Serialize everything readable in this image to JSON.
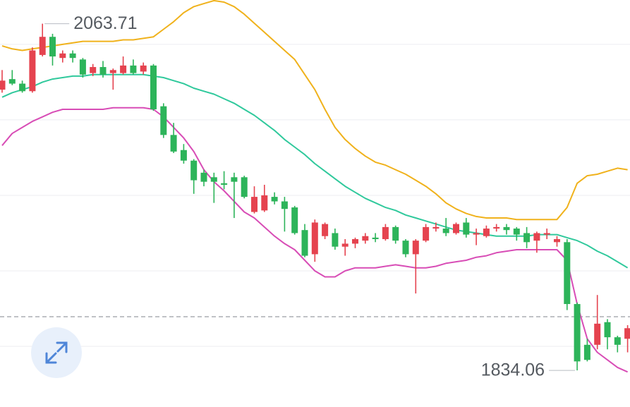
{
  "chart_data": {
    "type": "candlestick",
    "open": [
      2020,
      2027,
      2024,
      2019,
      2043,
      2055,
      2041,
      2044,
      2040,
      2031,
      2035,
      2031,
      2031,
      2036,
      2032,
      2036,
      2009,
      1990,
      1980,
      1973,
      1965,
      1962,
      1958,
      1962,
      1962,
      1939,
      1940,
      1949,
      1946,
      1942,
      1927,
      1911,
      1923,
      1925,
      1916,
      1918,
      1920,
      1922,
      1921,
      1929,
      1920,
      1911,
      1920,
      1928,
      1928,
      1925,
      1932,
      1924,
      1923,
      1928,
      1929,
      1928,
      1925,
      1920,
      1924,
      1919,
      1919,
      1878,
      1851,
      1851,
      1866,
      1856,
      1855
    ],
    "high": [
      2033,
      2033,
      2026,
      2048,
      2063.71,
      2057,
      2046,
      2046,
      2041,
      2037,
      2039,
      2034,
      2042,
      2040,
      2038,
      2037,
      2011,
      1998,
      1984,
      1974,
      1967,
      1965,
      1966,
      1965,
      1963,
      1956,
      1957,
      1952,
      1949,
      1943,
      1931,
      1934,
      1932,
      1928,
      1921,
      1922,
      1925,
      1925,
      1931,
      1930,
      1921,
      1921,
      1931,
      1932,
      1935,
      1932,
      1935,
      1928,
      1930,
      1931,
      1931,
      1929,
      1929,
      1926,
      1928,
      1923,
      1921,
      1879,
      1855,
      1884,
      1868,
      1857,
      1864
    ],
    "low": [
      2018,
      2023,
      2018,
      2018,
      2042,
      2036,
      2038,
      2038,
      2028,
      2029,
      2028,
      2020,
      2030,
      2030,
      2030,
      2006,
      1988,
      1978,
      1971,
      1951,
      1956,
      1945,
      1954,
      1935,
      1948,
      1938,
      1939,
      1944,
      1926,
      1924,
      1909,
      1906,
      1921,
      1914,
      1910,
      1915,
      1918,
      1919,
      1920,
      1918,
      1909,
      1885,
      1919,
      1926,
      1923,
      1924,
      1922,
      1917,
      1922,
      1926,
      1924,
      1920,
      1915,
      1912,
      1921,
      1916,
      1874,
      1834.06,
      1840,
      1848,
      1848,
      1846,
      1846
    ],
    "close": [
      2026,
      2024,
      2019,
      2046,
      2055,
      2042,
      2044,
      2041,
      2030,
      2035,
      2030,
      2033,
      2036,
      2031,
      2036,
      2007,
      1990,
      1979,
      1973,
      1960,
      1959,
      1959,
      1957,
      1959,
      1949,
      1949,
      1950,
      1946,
      1941,
      1925,
      1910,
      1932,
      1931,
      1916,
      1918,
      1921,
      1923,
      1921,
      1929,
      1920,
      1911,
      1920,
      1929,
      1929,
      1925,
      1931,
      1924,
      1925,
      1928,
      1929,
      1927,
      1924,
      1919,
      1925,
      1925,
      1921,
      1878,
      1840,
      1841,
      1865,
      1856,
      1851,
      1862
    ],
    "up_color": "#e5434f",
    "down_color": "#2db45a",
    "lines": [
      {
        "color": "#f0b21c",
        "values": [
          2049,
          2047,
          2046,
          2047,
          2048,
          2049,
          2050,
          2051,
          2052,
          2052,
          2052,
          2052,
          2053,
          2053,
          2054,
          2055,
          2060,
          2065,
          2071,
          2075,
          2077,
          2079,
          2078,
          2075,
          2070,
          2064,
          2058,
          2052,
          2046,
          2040,
          2030,
          2020,
          2007,
          1995,
          1987,
          1981,
          1976,
          1972,
          1970,
          1967,
          1964,
          1960,
          1956,
          1951,
          1945,
          1941,
          1938,
          1936,
          1935,
          1935,
          1935,
          1934,
          1934,
          1934,
          1934,
          1934,
          1942,
          1958,
          1963,
          1964,
          1966,
          1968,
          1967
        ]
      },
      {
        "color": "#30c99c",
        "values": [
          2015,
          2018,
          2020,
          2022,
          2025,
          2027,
          2028,
          2029,
          2029,
          2030,
          2030,
          2030,
          2030,
          2030,
          2030,
          2029,
          2028,
          2026,
          2024,
          2021,
          2019,
          2017,
          2014,
          2011,
          2007,
          2003,
          1998,
          1993,
          1987,
          1982,
          1977,
          1971,
          1966,
          1961,
          1956,
          1952,
          1948,
          1945,
          1942,
          1940,
          1937,
          1935,
          1933,
          1931,
          1929,
          1927,
          1926,
          1925,
          1924,
          1923,
          1923,
          1923,
          1923,
          1924,
          1924,
          1924,
          1922,
          1920,
          1917,
          1913,
          1910,
          1906,
          1902
        ]
      },
      {
        "color": "#d84db6",
        "values": [
          1983,
          1991,
          1995,
          1999,
          2002,
          2005,
          2007,
          2007,
          2007,
          2007,
          2007,
          2008,
          2008,
          2008,
          2008,
          2007,
          2002,
          1995,
          1988,
          1979,
          1967,
          1959,
          1953,
          1946,
          1939,
          1935,
          1929,
          1923,
          1918,
          1914,
          1907,
          1900,
          1896,
          1896,
          1900,
          1902,
          1902,
          1902,
          1903,
          1904,
          1903,
          1902,
          1902,
          1903,
          1905,
          1906,
          1907,
          1909,
          1910,
          1912,
          1913,
          1914,
          1914,
          1914,
          1914,
          1914,
          1907,
          1878,
          1855,
          1846,
          1841,
          1836,
          1833
        ]
      }
    ],
    "ylim": [
      1809.8,
      2079.4
    ],
    "yticks": [
      1850,
      1900,
      1950,
      2000,
      2050
    ],
    "grid": true,
    "reference_line": 1869.6
  }
}
